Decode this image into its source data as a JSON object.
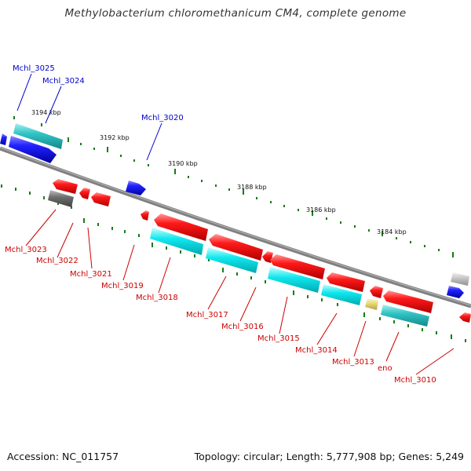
{
  "title": "Methylobacterium chloromethanicum CM4, complete genome",
  "footer": {
    "accession": "Accession: NC_011757",
    "topology": "Topology: circular; Length: 5,777,908 bp; Genes: 5,249"
  },
  "scale_labels": [
    "3194 kbp",
    "3192 kbp",
    "3190 kbp",
    "3188 kbp",
    "3186 kbp",
    "3184 kbp"
  ],
  "genes_top": [
    {
      "label": "Mchl_3025",
      "color": "#0000cc"
    },
    {
      "label": "Mchl_3024",
      "color": "#0000cc"
    },
    {
      "label": "Mchl_3020",
      "color": "#0000cc"
    }
  ],
  "genes_bottom": [
    {
      "label": "Mchl_3023",
      "color": "#cc0000"
    },
    {
      "label": "Mchl_3022",
      "color": "#cc0000"
    },
    {
      "label": "Mchl_3021",
      "color": "#cc0000"
    },
    {
      "label": "Mchl_3019",
      "color": "#cc0000"
    },
    {
      "label": "Mchl_3018",
      "color": "#cc0000"
    },
    {
      "label": "Mchl_3017",
      "color": "#cc0000"
    },
    {
      "label": "Mchl_3016",
      "color": "#cc0000"
    },
    {
      "label": "Mchl_3015",
      "color": "#cc0000"
    },
    {
      "label": "Mchl_3014",
      "color": "#cc0000"
    },
    {
      "label": "Mchl_3013",
      "color": "#cc0000"
    },
    {
      "label": "eno",
      "color": "#cc0000"
    },
    {
      "label": "Mchl_3010",
      "color": "#cc0000"
    }
  ],
  "colors": {
    "gene_red": "#ee0000",
    "gene_blue": "#1a1aee",
    "rna_cyan": "#00d8e0",
    "teal": "#22b8b8",
    "gray": "#707070",
    "yellow": "#e8d878",
    "light_gray": "#c4c4c4",
    "axis": "#808080",
    "tick_green": "#1a7a1a"
  }
}
